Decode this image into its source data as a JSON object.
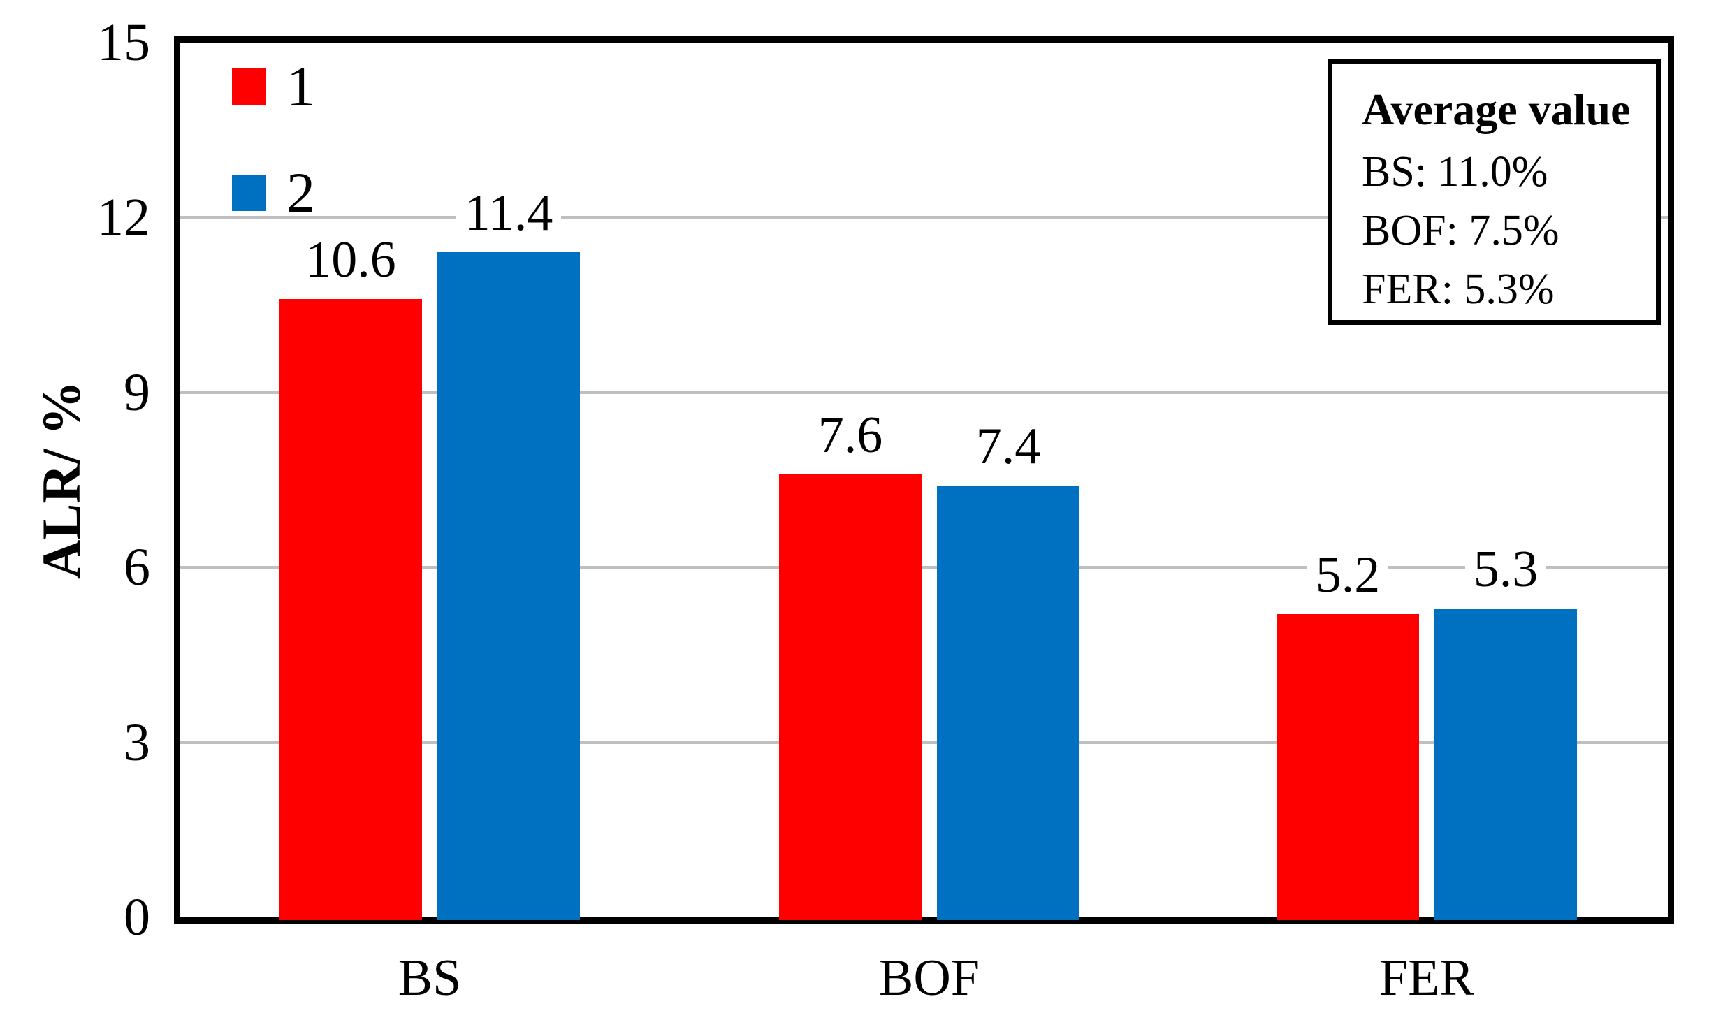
{
  "chart_data": {
    "type": "bar",
    "categories": [
      "BS",
      "BOF",
      "FER"
    ],
    "series": [
      {
        "name": "1",
        "color": "#FF0000",
        "values": [
          10.6,
          7.6,
          5.2
        ]
      },
      {
        "name": "2",
        "color": "#0070C0",
        "values": [
          11.4,
          7.4,
          5.3
        ]
      }
    ],
    "title": "",
    "xlabel": "",
    "ylabel": "ALR/ %",
    "ylim": [
      0,
      15
    ],
    "ytick_step": 3,
    "ytick_labels": [
      "0",
      "3",
      "6",
      "9",
      "12",
      "15"
    ],
    "grid": true,
    "data_labels": true,
    "legend_position": "top-left",
    "annotation": {
      "title": "Average value",
      "lines": [
        "BS: 11.0%",
        "BOF: 7.5%",
        "FER: 5.3%"
      ]
    },
    "colors": {
      "grid": "#BFBFBF",
      "frame": "#000000",
      "background": "#FFFFFF"
    }
  }
}
